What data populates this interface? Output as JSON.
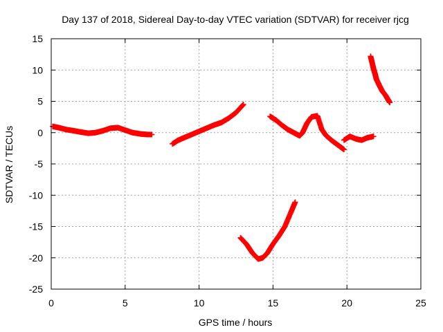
{
  "chart_data": {
    "type": "scatter",
    "title": "Day 137 of 2018, Sidereal Day-to-day VTEC variation (SDTVAR) for receiver rjcg",
    "xlabel": "GPS time / hours",
    "ylabel": "SDTVAR / TECUs",
    "xlim": [
      0,
      25
    ],
    "ylim": [
      -25,
      15
    ],
    "x_ticks": [
      0,
      5,
      10,
      15,
      20,
      25
    ],
    "y_ticks": [
      -25,
      -20,
      -15,
      -10,
      -5,
      0,
      5,
      10,
      15
    ],
    "grid": true,
    "marker": "+",
    "color": "#ff0000",
    "series": [
      {
        "name": "segment-1",
        "x": [
          0.1,
          0.5,
          1.0,
          1.5,
          2.0,
          2.5,
          3.0,
          3.5,
          4.0,
          4.5,
          5.0,
          5.5,
          6.0,
          6.5,
          6.8
        ],
        "y": [
          1.0,
          0.8,
          0.5,
          0.3,
          0.1,
          -0.1,
          0.0,
          0.3,
          0.7,
          0.8,
          0.4,
          0.0,
          -0.2,
          -0.3,
          -0.3
        ]
      },
      {
        "name": "segment-2",
        "x": [
          8.2,
          8.6,
          9.0,
          9.5,
          10.0,
          10.5,
          11.0,
          11.5,
          12.0,
          12.5,
          13.0
        ],
        "y": [
          -1.8,
          -1.2,
          -0.8,
          -0.3,
          0.2,
          0.7,
          1.2,
          1.6,
          2.3,
          3.2,
          4.5
        ]
      },
      {
        "name": "segment-3",
        "x": [
          12.8,
          13.2,
          13.6,
          14.0,
          14.3,
          14.6,
          15.0,
          15.4,
          15.8,
          16.2,
          16.5
        ],
        "y": [
          -16.8,
          -17.8,
          -19.2,
          -20.2,
          -20.0,
          -19.3,
          -17.8,
          -16.5,
          -15.0,
          -12.8,
          -11.1
        ]
      },
      {
        "name": "segment-4",
        "x": [
          14.8,
          15.2,
          15.6,
          16.0,
          16.4,
          16.8,
          17.0,
          17.3,
          17.6,
          18.0,
          18.3,
          18.6,
          19.0,
          19.4,
          19.8
        ],
        "y": [
          2.6,
          2.0,
          1.2,
          0.5,
          0.0,
          -0.5,
          0.0,
          1.5,
          2.5,
          2.7,
          0.5,
          -0.5,
          -1.3,
          -2.0,
          -2.7
        ]
      },
      {
        "name": "segment-5",
        "x": [
          19.8,
          20.2,
          20.6,
          21.0,
          21.4,
          21.8
        ],
        "y": [
          -1.2,
          -0.6,
          -1.0,
          -1.2,
          -0.8,
          -0.6
        ]
      },
      {
        "name": "segment-6",
        "x": [
          21.6,
          21.7,
          21.8,
          21.9,
          22.0,
          22.2,
          22.4,
          22.6,
          22.8,
          22.9
        ],
        "y": [
          12.2,
          11.2,
          10.2,
          9.4,
          8.5,
          7.5,
          6.6,
          6.0,
          5.2,
          4.8
        ]
      }
    ]
  }
}
